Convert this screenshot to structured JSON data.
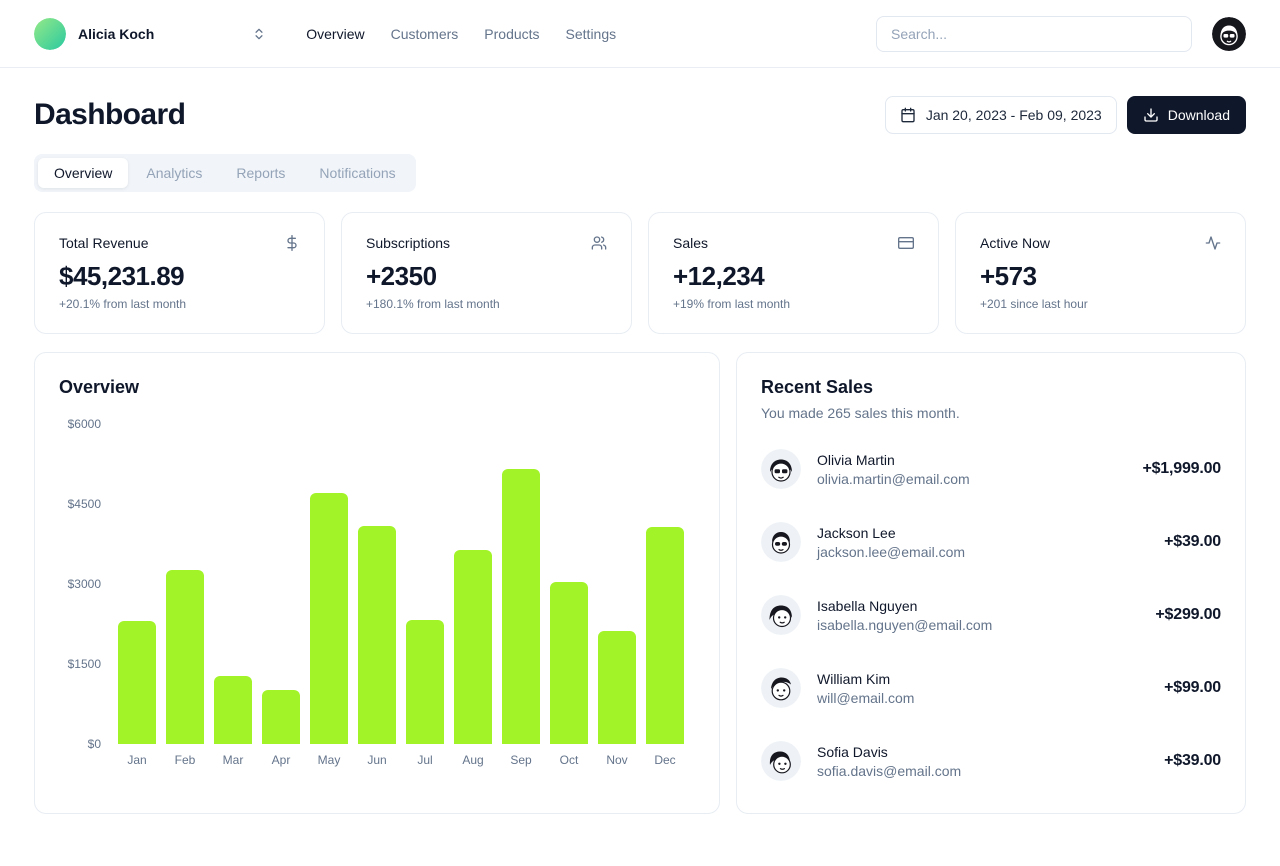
{
  "header": {
    "team_name": "Alicia Koch",
    "nav": [
      {
        "label": "Overview",
        "active": true
      },
      {
        "label": "Customers",
        "active": false
      },
      {
        "label": "Products",
        "active": false
      },
      {
        "label": "Settings",
        "active": false
      }
    ],
    "search_placeholder": "Search..."
  },
  "page": {
    "title": "Dashboard",
    "date_range": "Jan 20, 2023 - Feb 09, 2023",
    "download_label": "Download",
    "tabs": [
      {
        "label": "Overview",
        "active": true
      },
      {
        "label": "Analytics",
        "active": false
      },
      {
        "label": "Reports",
        "active": false
      },
      {
        "label": "Notifications",
        "active": false
      }
    ]
  },
  "stats": [
    {
      "title": "Total Revenue",
      "icon": "dollar-sign-icon",
      "value": "$45,231.89",
      "change": "+20.1% from last month"
    },
    {
      "title": "Subscriptions",
      "icon": "users-icon",
      "value": "+2350",
      "change": "+180.1% from last month"
    },
    {
      "title": "Sales",
      "icon": "credit-card-icon",
      "value": "+12,234",
      "change": "+19% from last month"
    },
    {
      "title": "Active Now",
      "icon": "activity-icon",
      "value": "+573",
      "change": "+201 since last hour"
    }
  ],
  "chart_data": {
    "type": "bar",
    "title": "Overview",
    "categories": [
      "Jan",
      "Feb",
      "Mar",
      "Apr",
      "May",
      "Jun",
      "Jul",
      "Aug",
      "Sep",
      "Oct",
      "Nov",
      "Dec"
    ],
    "values": [
      2300,
      3270,
      1270,
      1010,
      4710,
      4080,
      2320,
      3640,
      5150,
      3040,
      2120,
      4060
    ],
    "y_ticks": [
      "$6000",
      "$4500",
      "$3000",
      "$1500",
      "$0"
    ],
    "ylim": [
      0,
      6000
    ],
    "xlabel": "",
    "ylabel": "",
    "grid": false,
    "legend": false,
    "bar_color": "#a2f428"
  },
  "recent_sales": {
    "title": "Recent Sales",
    "subtitle": "You made 265 sales this month.",
    "items": [
      {
        "name": "Olivia Martin",
        "email": "olivia.martin@email.com",
        "amount": "+$1,999.00"
      },
      {
        "name": "Jackson Lee",
        "email": "jackson.lee@email.com",
        "amount": "+$39.00"
      },
      {
        "name": "Isabella Nguyen",
        "email": "isabella.nguyen@email.com",
        "amount": "+$299.00"
      },
      {
        "name": "William Kim",
        "email": "will@email.com",
        "amount": "+$99.00"
      },
      {
        "name": "Sofia Davis",
        "email": "sofia.davis@email.com",
        "amount": "+$39.00"
      }
    ]
  },
  "colors": {
    "accent": "#a2f428",
    "primary_text": "#0f172a",
    "muted_text": "#64748b",
    "border": "#e2e8f0",
    "dark_button": "#0f172a"
  }
}
